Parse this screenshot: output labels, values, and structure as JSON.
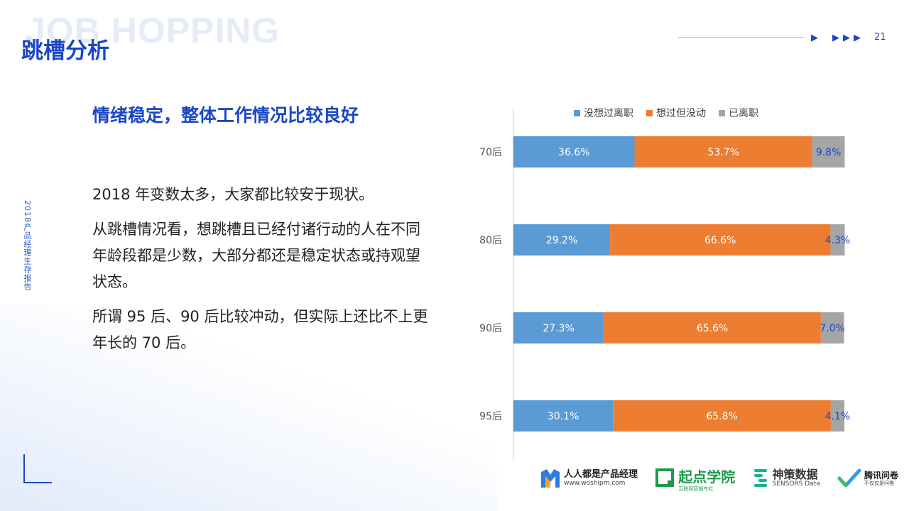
{
  "header": {
    "watermark": "JOB HOPPING",
    "title": "跳槽分析",
    "page_number": "21"
  },
  "side_label": "2018产品经理生存报告",
  "main": {
    "subtitle": "情绪稳定，整体工作情况比较良好",
    "paragraphs": [
      "2018 年变数太多，大家都比较安于现状。",
      "从跳槽情况看，想跳槽且已经付诸行动的人在不同年龄段都是少数，大部分都还是稳定状态或持观望状态。",
      "所谓 95 后、90 后比较冲动，但实际上还比不上更年长的 70 后。"
    ]
  },
  "chart_data": {
    "type": "bar",
    "orientation": "horizontal",
    "stacked": true,
    "categories": [
      "70后",
      "80后",
      "90后",
      "95后"
    ],
    "series": [
      {
        "name": "没想过离职",
        "values": [
          36.6,
          29.2,
          27.3,
          30.1
        ],
        "labels": [
          "36.6%",
          "29.2%",
          "27.3%",
          "30.1%"
        ],
        "color": "#5b9bd5"
      },
      {
        "name": "想过但没动",
        "values": [
          53.7,
          66.6,
          65.6,
          65.8
        ],
        "labels": [
          "53.7%",
          "66.6%",
          "65.6%",
          "65.8%"
        ],
        "color": "#ed7d31"
      },
      {
        "name": "已离职",
        "values": [
          9.8,
          4.3,
          7.0,
          4.1
        ],
        "labels": [
          "9.8%",
          "4.3%",
          "7.0%",
          "4.1%"
        ],
        "color": "#a5a5a5"
      }
    ],
    "xlim": [
      0,
      100
    ],
    "legend_position": "top",
    "grid": false
  },
  "footer": {
    "logos": [
      {
        "main": "人人都是产品经理",
        "sub": "www.woshipm.com"
      },
      {
        "main": "起点学院",
        "sub": "互联网营销专栏"
      },
      {
        "main": "神策数据",
        "sub": "SENSORS Data"
      },
      {
        "main": "腾讯问卷",
        "sub": "不仅仅是问卷"
      }
    ]
  },
  "colors": {
    "brand_blue": "#1a47c8",
    "bar_blue": "#5b9bd5",
    "bar_orange": "#ed7d31",
    "bar_gray": "#a5a5a5"
  }
}
